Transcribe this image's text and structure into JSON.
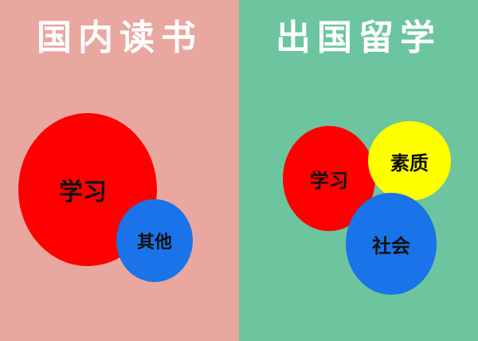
{
  "colors": {
    "left_bg": "#e8a8a0",
    "right_bg": "#6cc59e",
    "red": "#ff0000",
    "blue": "#1a73e8",
    "yellow": "#ffff00"
  },
  "left": {
    "title": "国内读书",
    "circles": {
      "study": "学习",
      "other": "其他"
    }
  },
  "right": {
    "title": "出国留学",
    "circles": {
      "study": "学习",
      "quality": "素质",
      "society": "社会"
    }
  }
}
